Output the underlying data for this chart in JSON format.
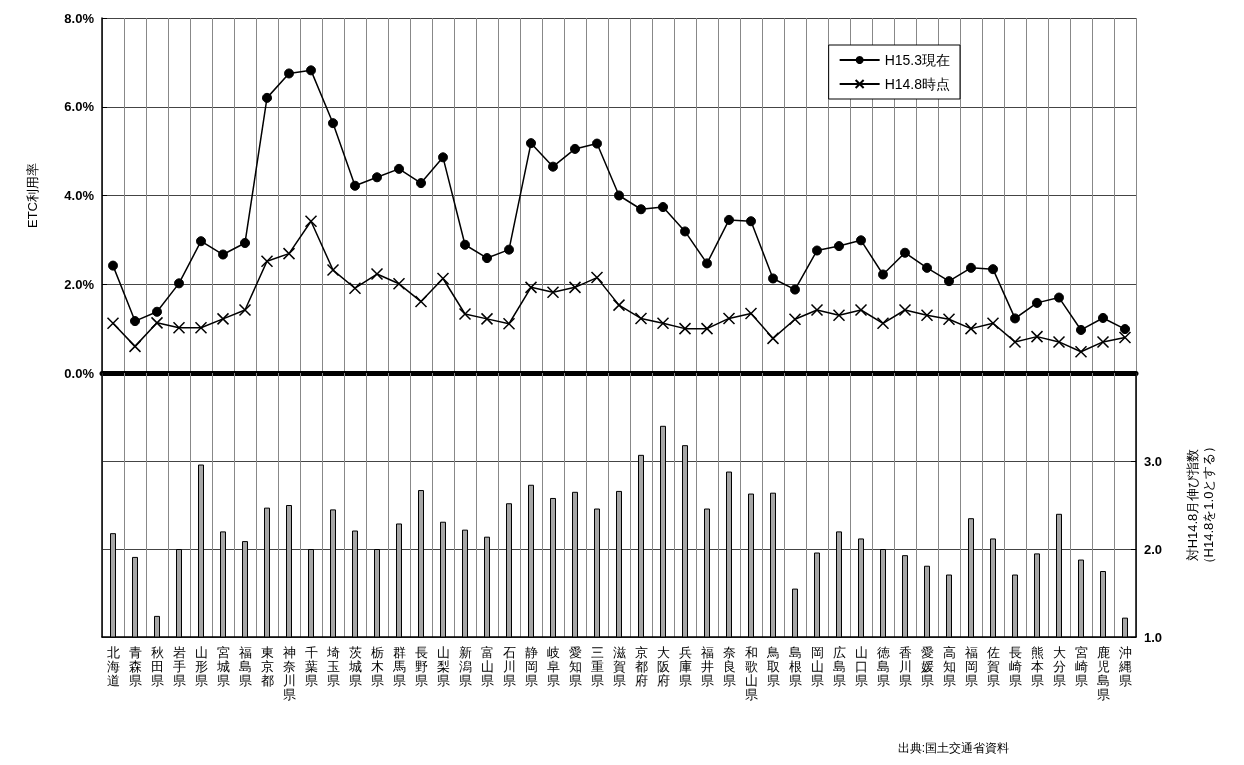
{
  "chart_data": [
    {
      "type": "line",
      "ylabel": "ETC利用率",
      "categories": [
        "北海道",
        "青森県",
        "秋田県",
        "岩手県",
        "山形県",
        "宮城県",
        "福島県",
        "東京都",
        "神奈川県",
        "千葉県",
        "埼玉県",
        "茨城県",
        "栃木県",
        "群馬県",
        "長野県",
        "山梨県",
        "新潟県",
        "富山県",
        "石川県",
        "静岡県",
        "岐阜県",
        "愛知県",
        "三重県",
        "滋賀県",
        "京都府",
        "大阪府",
        "兵庫県",
        "福井県",
        "奈良県",
        "和歌山県",
        "鳥取県",
        "島根県",
        "岡山県",
        "広島県",
        "山口県",
        "徳島県",
        "香川県",
        "愛媛県",
        "高知県",
        "福岡県",
        "佐賀県",
        "長崎県",
        "熊本県",
        "大分県",
        "宮崎県",
        "鹿児島県",
        "沖縄県"
      ],
      "series": [
        {
          "name": "H15.3現在",
          "color": "#000000",
          "marker": "circle",
          "values": [
            2.42,
            1.17,
            1.38,
            2.02,
            2.97,
            2.67,
            2.93,
            6.2,
            6.75,
            6.82,
            5.63,
            4.22,
            4.41,
            4.6,
            4.28,
            4.86,
            2.89,
            2.59,
            2.78,
            5.18,
            4.65,
            5.05,
            5.17,
            4.0,
            3.69,
            3.74,
            3.19,
            2.47,
            3.45,
            3.42,
            2.13,
            1.88,
            2.76,
            2.86,
            2.99,
            2.22,
            2.71,
            2.37,
            2.07,
            2.37,
            2.34,
            1.23,
            1.58,
            1.7,
            0.97,
            1.24,
            0.99
          ]
        },
        {
          "name": "H14.8時点",
          "color": "#000000",
          "marker": "cross",
          "values": [
            1.12,
            0.6,
            1.13,
            1.02,
            1.02,
            1.22,
            1.42,
            2.52,
            2.69,
            3.42,
            2.32,
            1.91,
            2.23,
            2.01,
            1.61,
            2.13,
            1.33,
            1.22,
            1.11,
            1.93,
            1.82,
            1.93,
            2.15,
            1.53,
            1.23,
            1.12,
            1.0,
            1.0,
            1.23,
            1.34,
            0.78,
            1.21,
            1.42,
            1.3,
            1.42,
            1.12,
            1.42,
            1.3,
            1.21,
            1.0,
            1.12,
            0.7,
            0.82,
            0.7,
            0.48,
            0.7,
            0.8
          ]
        }
      ],
      "ylim": [
        0,
        8
      ],
      "yticks": [
        {
          "value": 0,
          "label": "0.0%"
        },
        {
          "value": 2,
          "label": "2.0%"
        },
        {
          "value": 4,
          "label": "4.0%"
        },
        {
          "value": 6,
          "label": "6.0%"
        },
        {
          "value": 8,
          "label": "8.0%"
        }
      ],
      "grid": true,
      "legend": "top right",
      "tick_labels": "y"
    },
    {
      "type": "bar",
      "y2label": "対H14.8月伸び指数（H14.8を1.0とする）",
      "categories": [
        "北海道",
        "青森県",
        "秋田県",
        "岩手県",
        "山形県",
        "宮城県",
        "福島県",
        "東京都",
        "神奈川県",
        "千葉県",
        "埼玉県",
        "茨城県",
        "栃木県",
        "群馬県",
        "長野県",
        "山梨県",
        "新潟県",
        "富山県",
        "石川県",
        "静岡県",
        "岐阜県",
        "愛知県",
        "三重県",
        "滋賀県",
        "京都府",
        "大阪府",
        "兵庫県",
        "福井県",
        "奈良県",
        "和歌山県",
        "鳥取県",
        "島根県",
        "岡山県",
        "広島県",
        "山口県",
        "徳島県",
        "香川県",
        "愛媛県",
        "高知県",
        "福岡県",
        "佐賀県",
        "長崎県",
        "熊本県",
        "大分県",
        "宮崎県",
        "鹿児島県",
        "沖縄県"
      ],
      "series": [
        {
          "color": "#a6a6a6",
          "axis": "y2",
          "values": [
            2.18,
            1.91,
            1.24,
            2.0,
            2.96,
            2.2,
            2.09,
            2.47,
            2.5,
            2.0,
            2.45,
            2.21,
            2.0,
            2.29,
            2.67,
            2.31,
            2.22,
            2.14,
            2.52,
            2.73,
            2.58,
            2.65,
            2.46,
            2.66,
            3.07,
            3.4,
            3.18,
            2.46,
            2.88,
            2.63,
            2.64,
            1.55,
            1.96,
            2.2,
            2.12,
            2.0,
            1.93,
            1.81,
            1.71,
            2.35,
            2.12,
            1.71,
            1.95,
            2.4,
            1.88,
            1.75,
            1.22
          ]
        }
      ],
      "y2lim": [
        1,
        4
      ],
      "y2ticks": [
        {
          "value": 1,
          "label": "1.0"
        },
        {
          "value": 2,
          "label": "2.0"
        },
        {
          "value": 3,
          "label": "3.0"
        }
      ],
      "grid": true,
      "annotations": [
        "出典:国土交通省資料"
      ]
    }
  ]
}
